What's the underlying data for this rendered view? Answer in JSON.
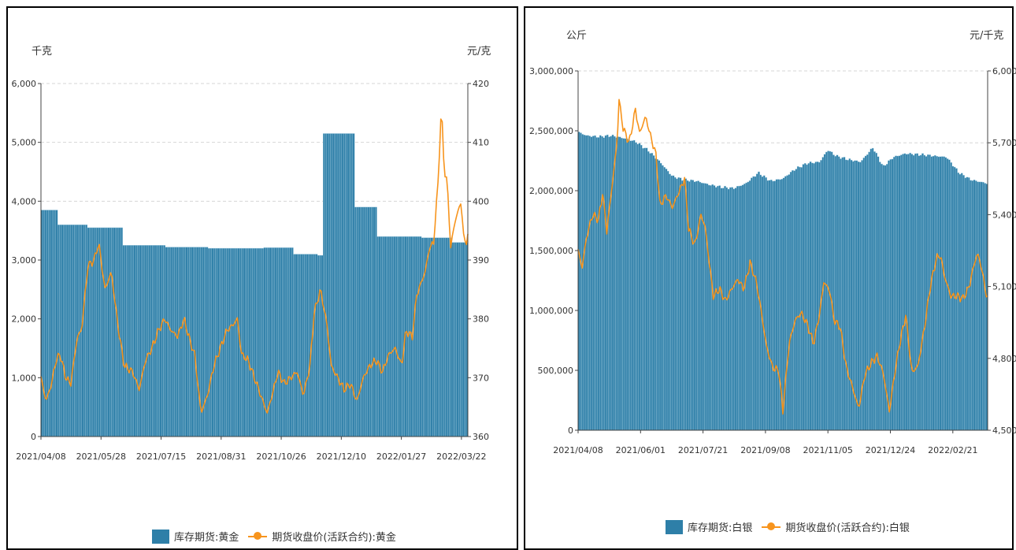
{
  "colors": {
    "bar": "#2e7fa8",
    "bar_stripe": "#a8cfe2",
    "line": "#f7941d",
    "grid": "#d6d6d6",
    "axis": "#444444"
  },
  "chart_data": [
    {
      "type": "bar",
      "unit_left": "千克",
      "unit_right": "元/克",
      "left_ylim": [
        0,
        6000
      ],
      "left_ticks": [
        "6,000",
        "5,000",
        "4,000",
        "3,000",
        "2,000",
        "1,000",
        "0"
      ],
      "right_ylim": [
        360,
        420
      ],
      "right_ticks": [
        "420",
        "410",
        "400",
        "390",
        "380",
        "370",
        "360"
      ],
      "x_ticks": [
        "2021/04/08",
        "2021/05/28",
        "2021/07/15",
        "2021/08/31",
        "2021/10/26",
        "2021/12/10",
        "2022/01/27",
        "2022/03/22"
      ],
      "grid": true,
      "legend_position": "bottom",
      "series": [
        {
          "name": "库存期货:黄金",
          "kind": "bar",
          "axis": "left",
          "steps": [
            [
              0,
              3850
            ],
            [
              0.04,
              3600
            ],
            [
              0.11,
              3550
            ],
            [
              0.19,
              3250
            ],
            [
              0.29,
              3220
            ],
            [
              0.39,
              3200
            ],
            [
              0.52,
              3210
            ],
            [
              0.59,
              3100
            ],
            [
              0.65,
              3080
            ],
            [
              0.66,
              5150
            ],
            [
              0.735,
              3900
            ],
            [
              0.785,
              3400
            ],
            [
              0.89,
              3380
            ],
            [
              0.96,
              3300
            ],
            [
              1.0,
              3300
            ]
          ]
        },
        {
          "name": "期货收盘价(活跃合约):黄金",
          "kind": "line",
          "axis": "right",
          "points": [
            [
              0,
              370
            ],
            [
              0.012,
              366
            ],
            [
              0.025,
              369
            ],
            [
              0.035,
              373
            ],
            [
              0.045,
              374
            ],
            [
              0.058,
              370
            ],
            [
              0.07,
              369
            ],
            [
              0.085,
              377
            ],
            [
              0.095,
              378
            ],
            [
              0.11,
              389
            ],
            [
              0.125,
              390
            ],
            [
              0.135,
              393
            ],
            [
              0.15,
              385
            ],
            [
              0.165,
              388
            ],
            [
              0.18,
              379
            ],
            [
              0.195,
              372
            ],
            [
              0.215,
              371
            ],
            [
              0.23,
              368
            ],
            [
              0.245,
              373
            ],
            [
              0.26,
              375
            ],
            [
              0.275,
              378
            ],
            [
              0.29,
              380
            ],
            [
              0.305,
              378
            ],
            [
              0.32,
              377
            ],
            [
              0.335,
              380
            ],
            [
              0.35,
              376
            ],
            [
              0.36,
              374
            ],
            [
              0.375,
              364
            ],
            [
              0.39,
              367
            ],
            [
              0.405,
              372
            ],
            [
              0.42,
              375
            ],
            [
              0.435,
              378
            ],
            [
              0.45,
              379
            ],
            [
              0.46,
              380
            ],
            [
              0.47,
              374
            ],
            [
              0.485,
              373
            ],
            [
              0.5,
              370
            ],
            [
              0.515,
              367
            ],
            [
              0.53,
              364
            ],
            [
              0.545,
              368
            ],
            [
              0.555,
              371
            ],
            [
              0.57,
              369
            ],
            [
              0.585,
              370
            ],
            [
              0.6,
              371
            ],
            [
              0.615,
              367
            ],
            [
              0.63,
              372
            ],
            [
              0.64,
              381
            ],
            [
              0.655,
              385
            ],
            [
              0.67,
              379
            ],
            [
              0.68,
              372
            ],
            [
              0.695,
              370
            ],
            [
              0.71,
              368
            ],
            [
              0.725,
              369
            ],
            [
              0.74,
              366
            ],
            [
              0.755,
              370
            ],
            [
              0.77,
              372
            ],
            [
              0.785,
              373
            ],
            [
              0.8,
              371
            ],
            [
              0.815,
              374
            ],
            [
              0.83,
              375
            ],
            [
              0.845,
              372
            ],
            [
              0.855,
              378
            ],
            [
              0.87,
              377
            ],
            [
              0.88,
              384
            ],
            [
              0.89,
              386
            ],
            [
              0.9,
              388
            ],
            [
              0.91,
              392
            ],
            [
              0.92,
              393
            ],
            [
              0.93,
              403
            ],
            [
              0.938,
              416
            ],
            [
              0.945,
              405
            ],
            [
              0.952,
              403
            ],
            [
              0.96,
              392
            ],
            [
              0.968,
              396
            ],
            [
              0.976,
              398
            ],
            [
              0.984,
              400
            ],
            [
              0.99,
              394
            ],
            [
              0.996,
              393
            ],
            [
              1.0,
              394
            ]
          ]
        }
      ]
    },
    {
      "type": "bar",
      "unit_left": "公斤",
      "unit_right": "元/千克",
      "left_ylim": [
        0,
        3000000
      ],
      "left_ticks": [
        "3,000,000",
        "2,500,000",
        "2,000,000",
        "1,500,000",
        "1,000,000",
        "500,000",
        "0"
      ],
      "right_ylim": [
        4500,
        6000
      ],
      "right_ticks": [
        "6,000",
        "5,700",
        "5,400",
        "5,100",
        "4,800",
        "4,500"
      ],
      "x_ticks": [
        "2021/04/08",
        "2021/06/01",
        "2021/07/21",
        "2021/09/08",
        "2021/11/05",
        "2021/12/24",
        "2022/02/21"
      ],
      "grid": true,
      "legend_position": "bottom",
      "series": [
        {
          "name": "库存期货:白银",
          "kind": "bar",
          "axis": "left",
          "points": [
            [
              0,
              2490000
            ],
            [
              0.02,
              2460000
            ],
            [
              0.05,
              2450000
            ],
            [
              0.08,
              2460000
            ],
            [
              0.11,
              2440000
            ],
            [
              0.14,
              2410000
            ],
            [
              0.17,
              2340000
            ],
            [
              0.2,
              2240000
            ],
            [
              0.23,
              2120000
            ],
            [
              0.26,
              2090000
            ],
            [
              0.29,
              2080000
            ],
            [
              0.32,
              2050000
            ],
            [
              0.35,
              2030000
            ],
            [
              0.38,
              2020000
            ],
            [
              0.41,
              2060000
            ],
            [
              0.44,
              2150000
            ],
            [
              0.47,
              2080000
            ],
            [
              0.5,
              2100000
            ],
            [
              0.53,
              2180000
            ],
            [
              0.56,
              2230000
            ],
            [
              0.59,
              2240000
            ],
            [
              0.61,
              2340000
            ],
            [
              0.63,
              2290000
            ],
            [
              0.66,
              2260000
            ],
            [
              0.69,
              2240000
            ],
            [
              0.72,
              2360000
            ],
            [
              0.745,
              2200000
            ],
            [
              0.77,
              2280000
            ],
            [
              0.8,
              2310000
            ],
            [
              0.84,
              2300000
            ],
            [
              0.87,
              2290000
            ],
            [
              0.9,
              2280000
            ],
            [
              0.93,
              2150000
            ],
            [
              0.96,
              2090000
            ],
            [
              1.0,
              2060000
            ]
          ]
        },
        {
          "name": "期货收盘价(活跃合约):白银",
          "kind": "line",
          "axis": "right",
          "points": [
            [
              0,
              5250
            ],
            [
              0.01,
              5180
            ],
            [
              0.02,
              5300
            ],
            [
              0.035,
              5400
            ],
            [
              0.05,
              5380
            ],
            [
              0.06,
              5490
            ],
            [
              0.07,
              5330
            ],
            [
              0.085,
              5550
            ],
            [
              0.095,
              5700
            ],
            [
              0.1,
              5880
            ],
            [
              0.11,
              5760
            ],
            [
              0.125,
              5700
            ],
            [
              0.14,
              5840
            ],
            [
              0.15,
              5740
            ],
            [
              0.165,
              5810
            ],
            [
              0.175,
              5740
            ],
            [
              0.19,
              5650
            ],
            [
              0.2,
              5440
            ],
            [
              0.215,
              5480
            ],
            [
              0.23,
              5430
            ],
            [
              0.245,
              5490
            ],
            [
              0.26,
              5550
            ],
            [
              0.27,
              5340
            ],
            [
              0.285,
              5270
            ],
            [
              0.3,
              5400
            ],
            [
              0.31,
              5350
            ],
            [
              0.33,
              5060
            ],
            [
              0.345,
              5090
            ],
            [
              0.36,
              5040
            ],
            [
              0.375,
              5090
            ],
            [
              0.39,
              5130
            ],
            [
              0.405,
              5090
            ],
            [
              0.42,
              5200
            ],
            [
              0.435,
              5120
            ],
            [
              0.445,
              5020
            ],
            [
              0.46,
              4850
            ],
            [
              0.475,
              4760
            ],
            [
              0.49,
              4750
            ],
            [
              0.5,
              4580
            ],
            [
              0.515,
              4860
            ],
            [
              0.53,
              4960
            ],
            [
              0.545,
              4990
            ],
            [
              0.56,
              4940
            ],
            [
              0.575,
              4860
            ],
            [
              0.59,
              4990
            ],
            [
              0.6,
              5120
            ],
            [
              0.615,
              5080
            ],
            [
              0.625,
              4960
            ],
            [
              0.64,
              4930
            ],
            [
              0.655,
              4760
            ],
            [
              0.67,
              4680
            ],
            [
              0.685,
              4590
            ],
            [
              0.7,
              4730
            ],
            [
              0.715,
              4780
            ],
            [
              0.73,
              4810
            ],
            [
              0.745,
              4740
            ],
            [
              0.76,
              4580
            ],
            [
              0.775,
              4760
            ],
            [
              0.785,
              4860
            ],
            [
              0.8,
              4980
            ],
            [
              0.815,
              4740
            ],
            [
              0.83,
              4770
            ],
            [
              0.845,
              4920
            ],
            [
              0.86,
              5100
            ],
            [
              0.875,
              5220
            ],
            [
              0.885,
              5230
            ],
            [
              0.895,
              5140
            ],
            [
              0.91,
              5060
            ],
            [
              0.925,
              5060
            ],
            [
              0.94,
              5050
            ],
            [
              0.955,
              5100
            ],
            [
              0.965,
              5180
            ],
            [
              0.975,
              5240
            ],
            [
              0.985,
              5180
            ],
            [
              0.995,
              5080
            ],
            [
              1.0,
              5050
            ]
          ]
        }
      ]
    }
  ]
}
